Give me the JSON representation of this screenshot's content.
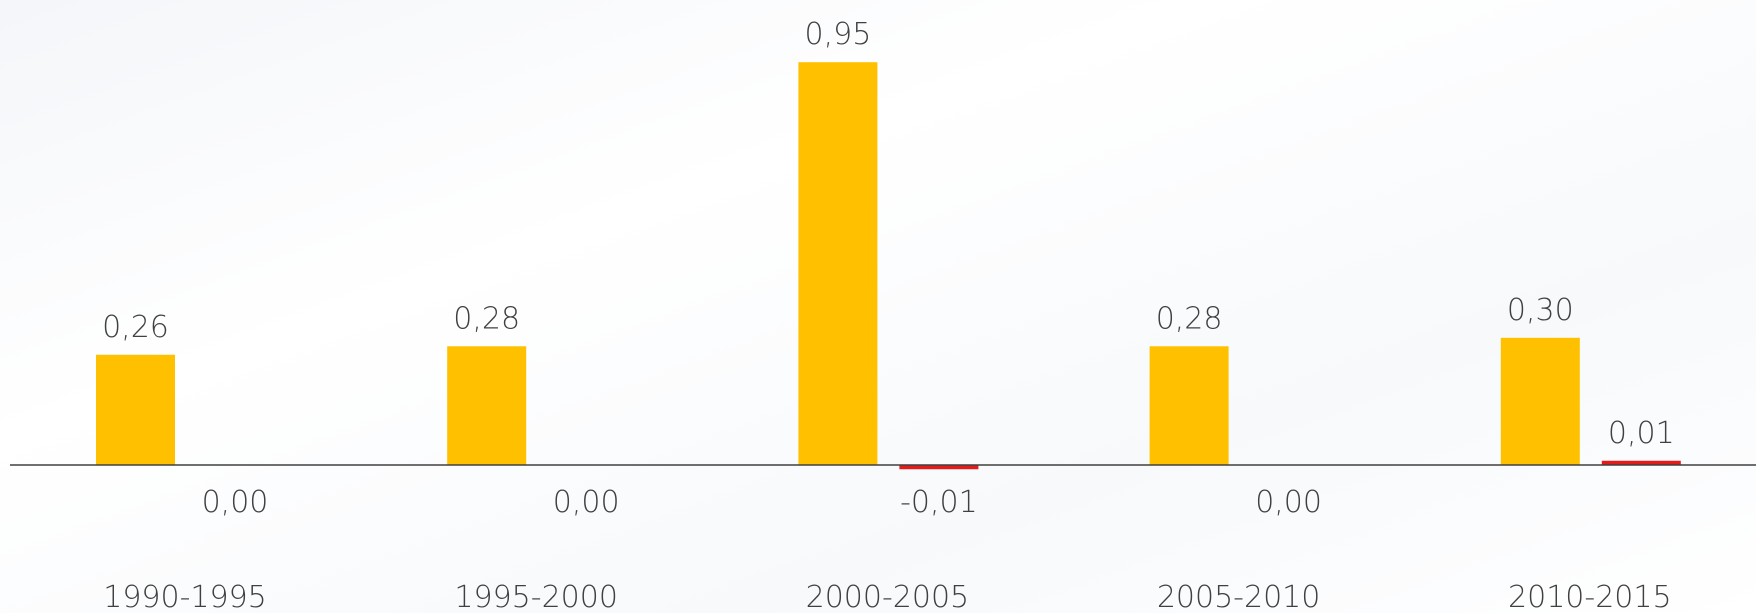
{
  "chart_data": {
    "type": "bar",
    "categories": [
      "1990-1995",
      "1995-2000",
      "2000-2005",
      "2005-2010",
      "2010-2015"
    ],
    "series": [
      {
        "values": [
          0.26,
          0.28,
          0.95,
          0.28,
          0.3
        ],
        "labels": [
          "0,26",
          "0,28",
          "0,95",
          "0,28",
          "0,30"
        ]
      },
      {
        "values": [
          0.0,
          0.0,
          -0.01,
          0.0,
          0.01
        ],
        "labels": [
          "0,00",
          "0,00",
          "-0,01",
          "0,00",
          "0,01"
        ]
      }
    ],
    "title": "",
    "xlabel": "",
    "ylabel": "",
    "ylim": [
      -0.05,
      1.05
    ],
    "grid": false,
    "legend": "none",
    "colors": {
      "series_1": "#FFC000",
      "series_2": "#E41B1B",
      "axis": "#404040",
      "text": "#404040"
    }
  }
}
